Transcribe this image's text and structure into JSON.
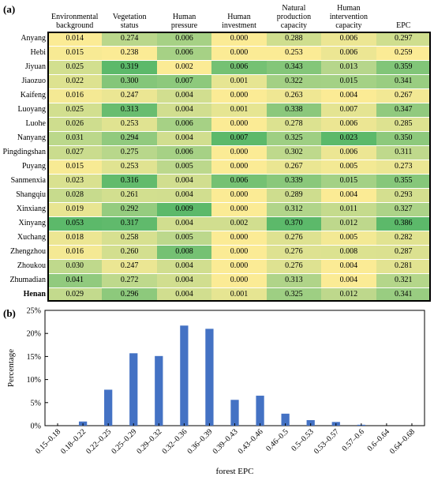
{
  "panels": {
    "a": "(a)",
    "b": "(b)"
  },
  "chart_data": [
    {
      "type": "heatmap",
      "columns": [
        "Environmental background",
        "Vegetation status",
        "Human pressure",
        "Human investment",
        "Natural production capacity",
        "Human intervention capacity",
        "EPC"
      ],
      "column_headers": [
        [
          "Environmental",
          "background"
        ],
        [
          "Vegetation",
          "status"
        ],
        [
          "Human",
          "pressure"
        ],
        [
          "Human",
          "investment"
        ],
        [
          "Natural",
          "production",
          "capacity"
        ],
        [
          "Human",
          "intervention",
          "capacity"
        ],
        [
          "EPC"
        ]
      ],
      "rows": [
        "Anyang",
        "Hebi",
        "Jiyuan",
        "Jiaozuo",
        "Kaifeng",
        "Luoyang",
        "Luohe",
        "Nanyang",
        "Pingdingshan",
        "Puyang",
        "Sanmenxia",
        "Shangqiu",
        "Xinxiang",
        "Xinyang",
        "Xuchang",
        "Zhengzhou",
        "Zhoukou",
        "Zhumadian",
        "Henan"
      ],
      "values": [
        [
          "0.014",
          "0.274",
          "0.006",
          "0.000",
          "0.288",
          "0.006",
          "0.297"
        ],
        [
          "0.015",
          "0.238",
          "0.006",
          "0.000",
          "0.253",
          "0.006",
          "0.259"
        ],
        [
          "0.025",
          "0.319",
          "0.002",
          "0.006",
          "0.343",
          "0.013",
          "0.359"
        ],
        [
          "0.022",
          "0.300",
          "0.007",
          "0.001",
          "0.322",
          "0.015",
          "0.341"
        ],
        [
          "0.016",
          "0.247",
          "0.004",
          "0.000",
          "0.263",
          "0.004",
          "0.267"
        ],
        [
          "0.025",
          "0.313",
          "0.004",
          "0.001",
          "0.338",
          "0.007",
          "0.347"
        ],
        [
          "0.026",
          "0.253",
          "0.006",
          "0.000",
          "0.278",
          "0.006",
          "0.285"
        ],
        [
          "0.031",
          "0.294",
          "0.004",
          "0.007",
          "0.325",
          "0.023",
          "0.350"
        ],
        [
          "0.027",
          "0.275",
          "0.006",
          "0.000",
          "0.302",
          "0.006",
          "0.311"
        ],
        [
          "0.015",
          "0.253",
          "0.005",
          "0.000",
          "0.267",
          "0.005",
          "0.273"
        ],
        [
          "0.023",
          "0.316",
          "0.004",
          "0.006",
          "0.339",
          "0.015",
          "0.355"
        ],
        [
          "0.028",
          "0.261",
          "0.004",
          "0.000",
          "0.289",
          "0.004",
          "0.293"
        ],
        [
          "0.019",
          "0.292",
          "0.009",
          "0.000",
          "0.312",
          "0.011",
          "0.327"
        ],
        [
          "0.053",
          "0.317",
          "0.004",
          "0.002",
          "0.370",
          "0.012",
          "0.386"
        ],
        [
          "0.018",
          "0.258",
          "0.005",
          "0.000",
          "0.276",
          "0.005",
          "0.282"
        ],
        [
          "0.016",
          "0.260",
          "0.008",
          "0.000",
          "0.276",
          "0.008",
          "0.287"
        ],
        [
          "0.030",
          "0.247",
          "0.004",
          "0.000",
          "0.276",
          "0.004",
          "0.281"
        ],
        [
          "0.041",
          "0.272",
          "0.004",
          "0.000",
          "0.313",
          "0.004",
          "0.321"
        ],
        [
          "0.029",
          "0.296",
          "0.004",
          "0.001",
          "0.325",
          "0.012",
          "0.341"
        ]
      ],
      "bold_row": "Henan",
      "colors": {
        "low": "#fbeb95",
        "mid": "#b2d58a",
        "high": "#5cb96a"
      }
    },
    {
      "type": "bar",
      "xlabel": "forest EPC",
      "ylabel": "Percentage",
      "ylim": [
        0,
        25
      ],
      "yticks": [
        "0%",
        "5%",
        "10%",
        "15%",
        "20%",
        "25%"
      ],
      "categories": [
        "0.15–0.18",
        "0.18–0.22",
        "0.22–0.25",
        "0.25–0.29",
        "0.29–0.32",
        "0.32–0.36",
        "0.36–0.39",
        "0.39–0.43",
        "0.43–0.46",
        "0.46–0.5",
        "0.5–0.53",
        "0.53–0.57",
        "0.57–0.6",
        "0.6–0.64",
        "0.64–0.68"
      ],
      "values": [
        0,
        0.9,
        7.8,
        15.7,
        15.1,
        21.7,
        21.0,
        5.6,
        6.5,
        2.6,
        1.2,
        0.8,
        0.2,
        0,
        0
      ],
      "bar_color": "#4472c4",
      "grid": false
    }
  ]
}
